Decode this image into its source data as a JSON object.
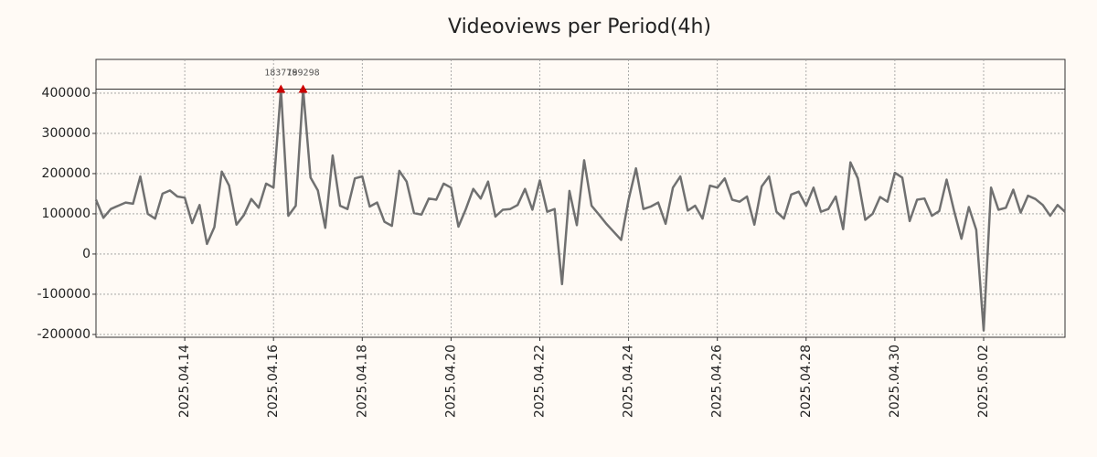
{
  "chart_data": {
    "type": "line",
    "title": "Videoviews per Period(4h)",
    "x": [
      "2025-04-12T00:00",
      "2025-04-12T04:00",
      "2025-04-12T08:00",
      "2025-04-12T12:00",
      "2025-04-12T16:00",
      "2025-04-12T20:00",
      "2025-04-13T00:00",
      "2025-04-13T04:00",
      "2025-04-13T08:00",
      "2025-04-13T12:00",
      "2025-04-13T16:00",
      "2025-04-13T20:00",
      "2025-04-14T00:00",
      "2025-04-14T04:00",
      "2025-04-14T08:00",
      "2025-04-14T12:00",
      "2025-04-14T16:00",
      "2025-04-14T20:00",
      "2025-04-15T00:00",
      "2025-04-15T04:00",
      "2025-04-15T08:00",
      "2025-04-15T12:00",
      "2025-04-15T16:00",
      "2025-04-15T20:00",
      "2025-04-16T00:00",
      "2025-04-16T04:00",
      "2025-04-16T08:00",
      "2025-04-16T12:00",
      "2025-04-16T16:00",
      "2025-04-16T20:00",
      "2025-04-17T00:00",
      "2025-04-17T04:00",
      "2025-04-17T08:00",
      "2025-04-17T12:00",
      "2025-04-17T16:00",
      "2025-04-17T20:00",
      "2025-04-18T00:00",
      "2025-04-18T04:00",
      "2025-04-18T08:00",
      "2025-04-18T12:00",
      "2025-04-18T16:00",
      "2025-04-18T20:00",
      "2025-04-19T00:00",
      "2025-04-19T04:00",
      "2025-04-19T08:00",
      "2025-04-19T12:00",
      "2025-04-19T16:00",
      "2025-04-19T20:00",
      "2025-04-20T00:00",
      "2025-04-20T04:00",
      "2025-04-20T08:00",
      "2025-04-20T12:00",
      "2025-04-20T16:00",
      "2025-04-20T20:00",
      "2025-04-21T00:00",
      "2025-04-21T04:00",
      "2025-04-21T08:00",
      "2025-04-21T12:00",
      "2025-04-21T16:00",
      "2025-04-21T20:00",
      "2025-04-22T00:00",
      "2025-04-22T04:00",
      "2025-04-22T08:00",
      "2025-04-22T12:00",
      "2025-04-22T16:00",
      "2025-04-22T20:00",
      "2025-04-23T00:00",
      "2025-04-23T04:00",
      "2025-04-23T08:00",
      "2025-04-23T12:00",
      "2025-04-23T16:00",
      "2025-04-23T20:00",
      "2025-04-24T00:00",
      "2025-04-24T04:00",
      "2025-04-24T08:00",
      "2025-04-24T12:00",
      "2025-04-24T16:00",
      "2025-04-24T20:00",
      "2025-04-25T00:00",
      "2025-04-25T04:00",
      "2025-04-25T08:00",
      "2025-04-25T12:00",
      "2025-04-25T16:00",
      "2025-04-25T20:00",
      "2025-04-26T00:00",
      "2025-04-26T04:00",
      "2025-04-26T08:00",
      "2025-04-26T12:00",
      "2025-04-26T16:00",
      "2025-04-26T20:00",
      "2025-04-27T00:00",
      "2025-04-27T04:00",
      "2025-04-27T08:00",
      "2025-04-27T12:00",
      "2025-04-27T16:00",
      "2025-04-27T20:00",
      "2025-04-28T00:00",
      "2025-04-28T04:00",
      "2025-04-28T08:00",
      "2025-04-28T12:00",
      "2025-04-28T16:00",
      "2025-04-28T20:00",
      "2025-04-29T00:00",
      "2025-04-29T04:00",
      "2025-04-29T08:00",
      "2025-04-29T12:00",
      "2025-04-29T16:00",
      "2025-04-29T20:00",
      "2025-04-30T00:00",
      "2025-04-30T04:00",
      "2025-04-30T08:00",
      "2025-04-30T12:00",
      "2025-04-30T16:00",
      "2025-04-30T20:00",
      "2025-05-01T00:00",
      "2025-05-01T04:00",
      "2025-05-01T08:00",
      "2025-05-01T12:00",
      "2025-05-01T16:00",
      "2025-05-01T20:00",
      "2025-05-02T00:00",
      "2025-05-02T04:00",
      "2025-05-02T08:00",
      "2025-05-02T12:00",
      "2025-05-02T16:00",
      "2025-05-02T20:00",
      "2025-05-03T00:00",
      "2025-05-03T04:00",
      "2025-05-03T08:00",
      "2025-05-03T12:00",
      "2025-05-03T16:00",
      "2025-05-03T20:00"
    ],
    "values": [
      135000,
      90000,
      112000,
      120000,
      128000,
      125000,
      193000,
      100000,
      88000,
      150000,
      158000,
      143000,
      140000,
      77000,
      122000,
      25000,
      67000,
      205000,
      170000,
      73000,
      97000,
      137000,
      115000,
      175000,
      165000,
      410000,
      95000,
      120000,
      410000,
      190000,
      158000,
      65000,
      245000,
      120000,
      112000,
      188000,
      193000,
      118000,
      128000,
      80000,
      70000,
      207000,
      180000,
      102000,
      98000,
      138000,
      135000,
      175000,
      165000,
      68000,
      112000,
      162000,
      138000,
      180000,
      93000,
      110000,
      112000,
      122000,
      162000,
      110000,
      183000,
      105000,
      112000,
      -75000,
      157000,
      72000,
      233000,
      120000,
      98000,
      75000,
      55000,
      35000,
      135000,
      213000,
      112000,
      118000,
      128000,
      75000,
      165000,
      193000,
      108000,
      120000,
      88000,
      170000,
      165000,
      188000,
      135000,
      130000,
      143000,
      73000,
      168000,
      193000,
      105000,
      88000,
      148000,
      155000,
      120000,
      165000,
      105000,
      112000,
      143000,
      62000,
      228000,
      188000,
      85000,
      100000,
      142000,
      130000,
      202000,
      190000,
      82000,
      135000,
      138000,
      95000,
      107000,
      185000,
      108000,
      38000,
      117000,
      60000,
      -190000,
      165000,
      110000,
      115000,
      160000,
      103000,
      145000,
      137000,
      122000,
      95000,
      122000,
      105000
    ],
    "color": "#707070",
    "xlim": [
      "2025-04-12T00:00",
      "2025-05-03T20:00"
    ],
    "xticks": [
      {
        "value": "2025-04-14T00:00",
        "label": "2025.04.14"
      },
      {
        "value": "2025-04-16T00:00",
        "label": "2025.04.16"
      },
      {
        "value": "2025-04-18T00:00",
        "label": "2025.04.18"
      },
      {
        "value": "2025-04-20T00:00",
        "label": "2025.04.20"
      },
      {
        "value": "2025-04-22T00:00",
        "label": "2025.04.22"
      },
      {
        "value": "2025-04-24T00:00",
        "label": "2025.04.24"
      },
      {
        "value": "2025-04-26T00:00",
        "label": "2025.04.26"
      },
      {
        "value": "2025-04-28T00:00",
        "label": "2025.04.28"
      },
      {
        "value": "2025-04-30T00:00",
        "label": "2025.04.30"
      },
      {
        "value": "2025-05-02T00:00",
        "label": "2025.05.02"
      }
    ],
    "ylim": [
      -207000,
      484000
    ],
    "yticks": [
      -200000,
      -100000,
      0,
      100000,
      200000,
      300000,
      400000
    ],
    "grid": true,
    "hline": 410000,
    "annotations": [
      {
        "text": "183779",
        "x": "2025-04-16T04:00",
        "y": 410000,
        "color": "#cc0000"
      },
      {
        "text": "189298",
        "x": "2025-04-16T16:00",
        "y": 410000,
        "color": "#cc0000"
      }
    ]
  }
}
